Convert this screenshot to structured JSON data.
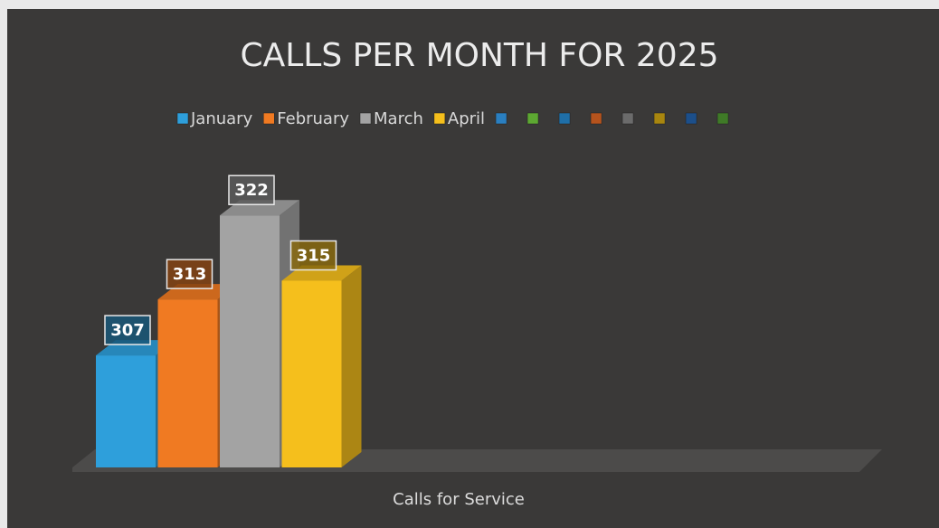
{
  "chart_data": {
    "type": "bar3d",
    "title": "CALLS PER MONTH FOR 2025",
    "categories": [
      "Calls for Service"
    ],
    "series": [
      {
        "name": "January",
        "color": "#2e9fdb",
        "values": [
          307
        ]
      },
      {
        "name": "February",
        "color": "#f07a22",
        "values": [
          313
        ]
      },
      {
        "name": "March",
        "color": "#a3a3a3",
        "values": [
          322
        ]
      },
      {
        "name": "April",
        "color": "#f5bf1c",
        "values": [
          315
        ]
      },
      {
        "name": null,
        "color": "#2a7fc0",
        "values": [
          null
        ]
      },
      {
        "name": null,
        "color": "#5da832",
        "values": [
          null
        ]
      },
      {
        "name": null,
        "color": "#1f6fa8",
        "values": [
          null
        ]
      },
      {
        "name": null,
        "color": "#b5531d",
        "values": [
          null
        ]
      },
      {
        "name": null,
        "color": "#6b6b6b",
        "values": [
          null
        ]
      },
      {
        "name": null,
        "color": "#a8860f",
        "values": [
          null
        ]
      },
      {
        "name": null,
        "color": "#1c4f8a",
        "values": [
          null
        ]
      },
      {
        "name": null,
        "color": "#3f7a27",
        "values": [
          null
        ]
      }
    ],
    "ylim": [
      295,
      335
    ]
  }
}
